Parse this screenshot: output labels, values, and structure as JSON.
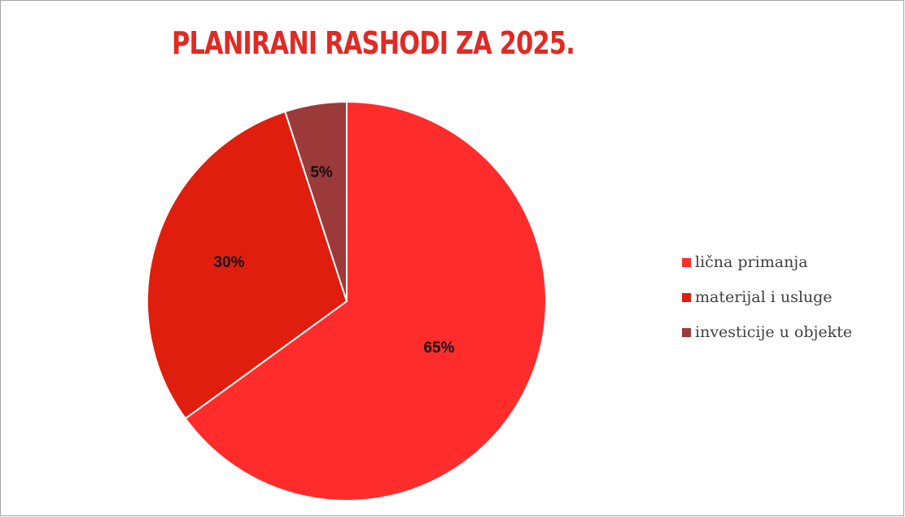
{
  "chart_data": {
    "type": "pie",
    "title": "PLANIRANI RASHODI ZA 2025.",
    "slices": [
      {
        "label": "lična primanja",
        "value": 65,
        "data_label": "65%",
        "color": "#ff2c2c"
      },
      {
        "label": "materijal i usluge",
        "value": 30,
        "data_label": "30%",
        "color": "#e01e0e"
      },
      {
        "label": "investicije u objekte",
        "value": 5,
        "data_label": "5%",
        "color": "#9b3a38"
      }
    ],
    "legend_position": "right"
  }
}
